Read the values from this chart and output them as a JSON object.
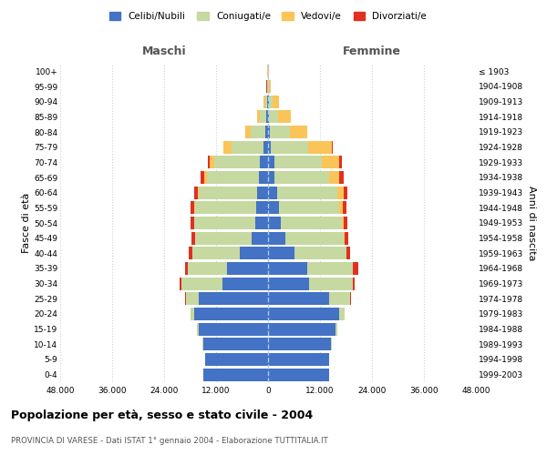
{
  "age_groups": [
    "0-4",
    "5-9",
    "10-14",
    "15-19",
    "20-24",
    "25-29",
    "30-34",
    "35-39",
    "40-44",
    "45-49",
    "50-54",
    "55-59",
    "60-64",
    "65-69",
    "70-74",
    "75-79",
    "80-84",
    "85-89",
    "90-94",
    "95-99",
    "100+"
  ],
  "birth_years": [
    "1999-2003",
    "1994-1998",
    "1989-1993",
    "1984-1988",
    "1979-1983",
    "1974-1978",
    "1969-1973",
    "1964-1968",
    "1959-1963",
    "1954-1958",
    "1949-1953",
    "1944-1948",
    "1939-1943",
    "1934-1938",
    "1929-1933",
    "1924-1928",
    "1919-1923",
    "1914-1918",
    "1909-1913",
    "1904-1908",
    "≤ 1903"
  ],
  "males_celibi": [
    15000,
    14500,
    15000,
    16000,
    17000,
    16000,
    10500,
    9500,
    6500,
    3800,
    3000,
    2800,
    2500,
    2200,
    2000,
    1000,
    600,
    400,
    200,
    80,
    50
  ],
  "males_coniugati": [
    50,
    50,
    200,
    400,
    800,
    3000,
    9500,
    9000,
    11000,
    13000,
    14000,
    14000,
    13500,
    12000,
    10500,
    7500,
    3500,
    1500,
    500,
    150,
    50
  ],
  "males_vedovi": [
    0,
    0,
    5,
    5,
    10,
    10,
    20,
    30,
    50,
    100,
    150,
    200,
    300,
    500,
    1000,
    1800,
    1200,
    700,
    300,
    80,
    20
  ],
  "males_divorziati": [
    0,
    0,
    5,
    10,
    30,
    100,
    300,
    700,
    800,
    700,
    700,
    800,
    800,
    800,
    400,
    100,
    50,
    30,
    20,
    10,
    5
  ],
  "females_nubili": [
    14000,
    14000,
    14500,
    15500,
    16500,
    14000,
    9500,
    9000,
    6000,
    4000,
    3000,
    2500,
    2000,
    1500,
    1500,
    700,
    500,
    300,
    200,
    100,
    50
  ],
  "females_coniugate": [
    50,
    50,
    200,
    500,
    1200,
    5000,
    10000,
    10500,
    12000,
    13500,
    14000,
    14000,
    14000,
    12500,
    11000,
    8500,
    4500,
    2000,
    800,
    200,
    50
  ],
  "females_vedove": [
    0,
    0,
    5,
    5,
    10,
    20,
    50,
    100,
    150,
    250,
    500,
    800,
    1500,
    2500,
    4000,
    5500,
    4000,
    3000,
    1500,
    400,
    100
  ],
  "females_divorziate": [
    0,
    0,
    5,
    10,
    50,
    200,
    500,
    1200,
    900,
    800,
    800,
    900,
    900,
    900,
    500,
    150,
    70,
    40,
    20,
    10,
    5
  ],
  "color_celibi": "#4472C4",
  "color_coniugati": "#C5D9A0",
  "color_vedovi": "#FAC458",
  "color_divorziati": "#E03020",
  "xlim": 48000,
  "title": "Popolazione per età, sesso e stato civile - 2004",
  "subtitle": "PROVINCIA DI VARESE - Dati ISTAT 1° gennaio 2004 - Elaborazione TUTTITALIA.IT",
  "ylabel_left": "Fasce di età",
  "ylabel_right": "Anni di nascita",
  "header_left": "Maschi",
  "header_right": "Femmine",
  "legend_labels": [
    "Celibi/Nubili",
    "Coniugati/e",
    "Vedovi/e",
    "Divorziati/e"
  ]
}
